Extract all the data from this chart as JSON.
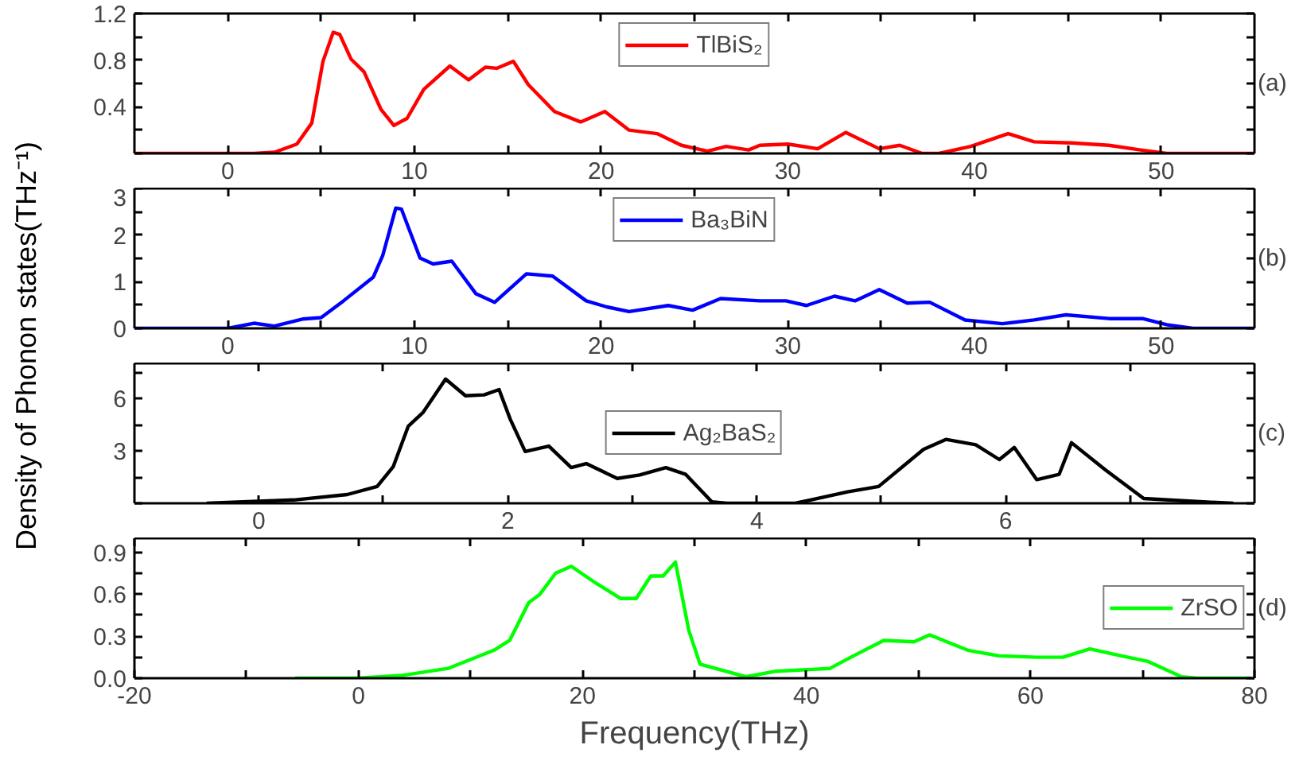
{
  "chart_data": [
    {
      "type": "line",
      "ylabel": "Density of Phonon states(THz⁻¹)",
      "annotations": [
        "(a)"
      ],
      "legend": "top",
      "xlim": [
        -5,
        55
      ],
      "xticks": [
        0,
        {
          "value": 5,
          "label": null
        },
        10,
        {
          "value": 15,
          "label": null
        },
        20,
        {
          "value": 25,
          "label": null
        },
        30,
        {
          "value": 35,
          "label": null
        },
        40,
        {
          "value": 45,
          "label": null
        },
        50
      ],
      "ylim": [
        0,
        1.2
      ],
      "yticks": [
        {
          "value": 0,
          "label": null
        },
        {
          "value": 0.2,
          "label": null
        },
        0.4,
        {
          "value": 0.6,
          "label": null
        },
        0.8,
        {
          "value": 1.0,
          "label": null
        },
        1.2
      ],
      "series": [
        {
          "name": "TlBiS₂",
          "color": "#ff0000",
          "x": [
            -5,
            1.4,
            2.5,
            3.7,
            4.5,
            5.1,
            5.65,
            6.0,
            6.6,
            7.3,
            8.2,
            8.9,
            9.6,
            10.5,
            11.9,
            12.9,
            13.8,
            14.4,
            15.3,
            16.1,
            17.5,
            18.9,
            20.2,
            21.5,
            23.0,
            24.3,
            25.7,
            26.7,
            27.9,
            28.5,
            30.0,
            31.6,
            33.1,
            34.9,
            36.0,
            37.2,
            38.1,
            39.8,
            41.8,
            43.2,
            45.2,
            47.2,
            48.9,
            50.3,
            55
          ],
          "values": [
            0,
            0,
            0.01,
            0.08,
            0.26,
            0.79,
            1.04,
            1.02,
            0.81,
            0.7,
            0.38,
            0.24,
            0.3,
            0.55,
            0.75,
            0.63,
            0.74,
            0.73,
            0.79,
            0.59,
            0.36,
            0.27,
            0.36,
            0.2,
            0.17,
            0.07,
            0.02,
            0.06,
            0.03,
            0.07,
            0.08,
            0.04,
            0.18,
            0.04,
            0.07,
            0,
            0,
            0.06,
            0.17,
            0.1,
            0.09,
            0.07,
            0.03,
            0,
            0
          ]
        }
      ]
    },
    {
      "type": "line",
      "annotations": [
        "(b)"
      ],
      "legend": "top",
      "xlim": [
        -5,
        55
      ],
      "xticks": [
        0,
        {
          "value": 5,
          "label": null
        },
        10,
        {
          "value": 15,
          "label": null
        },
        20,
        {
          "value": 25,
          "label": null
        },
        30,
        {
          "value": 35,
          "label": null
        },
        40,
        {
          "value": 45,
          "label": null
        },
        50
      ],
      "ylim": [
        0,
        3
      ],
      "yticks": [
        0,
        {
          "value": 0.5,
          "label": null
        },
        1,
        {
          "value": 1.5,
          "label": null
        },
        2,
        {
          "value": 2.5,
          "label": null
        },
        3
      ],
      "series": [
        {
          "name": "Ba₃BiN",
          "color": "#0000ff",
          "x": [
            -5,
            0,
            1.4,
            2.5,
            4.0,
            5.0,
            6.2,
            7.8,
            8.3,
            9.0,
            9.3,
            10.3,
            11.0,
            12.0,
            13.3,
            14.3,
            16.0,
            17.4,
            19.2,
            20.3,
            21.5,
            23.6,
            24.9,
            26.4,
            28.5,
            29.9,
            31.0,
            32.5,
            33.6,
            34.9,
            36.4,
            37.6,
            39.5,
            41.5,
            43.2,
            44.9,
            47.2,
            49.0,
            50.3,
            51.7,
            55
          ],
          "values": [
            0,
            0,
            0.11,
            0.05,
            0.2,
            0.23,
            0.59,
            1.1,
            1.56,
            2.58,
            2.56,
            1.51,
            1.38,
            1.44,
            0.74,
            0.56,
            1.17,
            1.12,
            0.59,
            0.46,
            0.36,
            0.49,
            0.39,
            0.64,
            0.59,
            0.59,
            0.49,
            0.69,
            0.59,
            0.83,
            0.54,
            0.56,
            0.18,
            0.1,
            0.18,
            0.29,
            0.21,
            0.21,
            0.08,
            0,
            0
          ]
        }
      ]
    },
    {
      "type": "line",
      "annotations": [
        "(c)"
      ],
      "legend": "center",
      "xlim": [
        -1,
        8
      ],
      "xticks": [
        0,
        {
          "value": 1,
          "label": null
        },
        2,
        {
          "value": 3,
          "label": null
        },
        4,
        {
          "value": 5,
          "label": null
        },
        6,
        {
          "value": 7,
          "label": null
        }
      ],
      "ylim": [
        0,
        8
      ],
      "yticks": [
        {
          "value": 0,
          "label": null
        },
        {
          "value": 1.5,
          "label": null
        },
        3,
        {
          "value": 4.5,
          "label": null
        },
        6,
        {
          "value": 7.5,
          "label": null
        }
      ],
      "series": [
        {
          "name": "Ag₂BaS₂",
          "color": "#000000",
          "x": [
            -0.42,
            0.28,
            0.71,
            0.95,
            1.08,
            1.2,
            1.32,
            1.5,
            1.66,
            1.81,
            1.93,
            2.02,
            2.14,
            2.33,
            2.51,
            2.63,
            2.88,
            3.06,
            3.27,
            3.43,
            3.64,
            3.76,
            4.31,
            4.73,
            4.98,
            5.34,
            5.52,
            5.76,
            5.95,
            6.07,
            6.25,
            6.43,
            6.53,
            6.8,
            7.11,
            7.59,
            7.83
          ],
          "values": [
            0,
            0.19,
            0.5,
            0.96,
            2.1,
            4.4,
            5.2,
            7.1,
            6.15,
            6.2,
            6.5,
            4.8,
            2.96,
            3.27,
            2.04,
            2.27,
            1.42,
            1.62,
            2.04,
            1.65,
            0.08,
            0,
            0,
            0.65,
            0.96,
            3.08,
            3.65,
            3.35,
            2.5,
            3.19,
            1.35,
            1.65,
            3.46,
            1.92,
            0.27,
            0.08,
            0
          ]
        }
      ]
    },
    {
      "type": "line",
      "annotations": [
        "(d)"
      ],
      "legend": "right",
      "xlabel": "Frequency(THz)",
      "xlim": [
        -20,
        80
      ],
      "xticks": [
        -20,
        {
          "value": -10,
          "label": null
        },
        0,
        {
          "value": 10,
          "label": null
        },
        20,
        {
          "value": 30,
          "label": null
        },
        40,
        {
          "value": 50,
          "label": null
        },
        60,
        {
          "value": 70,
          "label": null
        },
        80
      ],
      "ylim": [
        0,
        1.0
      ],
      "yticks": [
        {
          "value": 0,
          "label": "0.0"
        },
        {
          "value": 0.15,
          "label": null
        },
        0.3,
        {
          "value": 0.45,
          "label": null
        },
        0.6,
        {
          "value": 0.75,
          "label": null
        },
        0.9
      ],
      "series": [
        {
          "name": "ZrSO",
          "color": "#00ff00",
          "x": [
            -5.65,
            -0.1,
            3.9,
            8.0,
            12.1,
            13.5,
            15.2,
            16.2,
            17.6,
            19.0,
            21.0,
            23.4,
            24.8,
            26.1,
            27.2,
            28.3,
            29.5,
            30.5,
            34.6,
            37.3,
            42.1,
            44.2,
            46.9,
            49.6,
            51.0,
            54.4,
            57.2,
            60.5,
            62.9,
            65.3,
            68.1,
            70.5,
            73.5,
            74.9,
            79.7
          ],
          "values": [
            0,
            0,
            0.02,
            0.07,
            0.2,
            0.27,
            0.54,
            0.6,
            0.75,
            0.8,
            0.69,
            0.57,
            0.57,
            0.73,
            0.73,
            0.83,
            0.34,
            0.1,
            0.01,
            0.05,
            0.07,
            0.16,
            0.27,
            0.26,
            0.31,
            0.2,
            0.16,
            0.15,
            0.15,
            0.21,
            0.16,
            0.12,
            0.01,
            0,
            0
          ]
        }
      ]
    }
  ]
}
